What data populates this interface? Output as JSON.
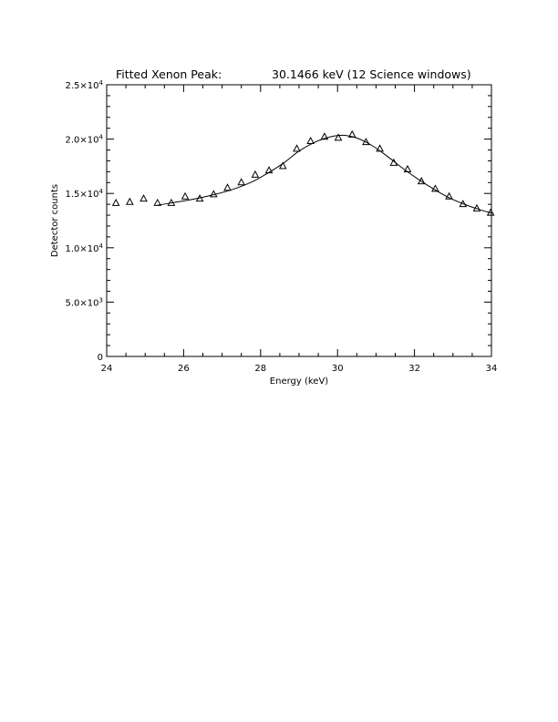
{
  "chart_data": {
    "type": "scatter",
    "title": "Fitted Xenon Peak:",
    "title_value": "30.1466 keV (12 Science windows)",
    "xlabel": "Energy (keV)",
    "ylabel": "Detector counts",
    "xlim": [
      24,
      34
    ],
    "ylim": [
      0,
      25000
    ],
    "grid": false,
    "x_ticks": [
      24,
      26,
      28,
      30,
      32,
      34
    ],
    "x_tick_labels": [
      "24",
      "26",
      "28",
      "30",
      "32",
      "34"
    ],
    "y_ticks": [
      0,
      5000,
      10000,
      15000,
      20000,
      25000
    ],
    "y_tick_labels": [
      {
        "mant": "0",
        "exp": ""
      },
      {
        "mant": "5.0×10",
        "exp": "3"
      },
      {
        "mant": "1.0×10",
        "exp": "4"
      },
      {
        "mant": "1.5×10",
        "exp": "4"
      },
      {
        "mant": "2.0×10",
        "exp": "4"
      },
      {
        "mant": "2.5×10",
        "exp": "4"
      }
    ],
    "series": [
      {
        "marker": "triangle",
        "x": [
          24.24,
          24.6,
          24.96,
          25.32,
          25.68,
          26.04,
          26.42,
          26.78,
          27.14,
          27.5,
          27.86,
          28.22,
          28.58,
          28.94,
          29.3,
          29.66,
          30.02,
          30.38,
          30.74,
          31.1,
          31.46,
          31.82,
          32.18,
          32.54,
          32.9,
          33.26,
          33.62,
          33.98
        ],
        "y": [
          14100,
          14200,
          14500,
          14100,
          14100,
          14700,
          14500,
          14900,
          15500,
          16000,
          16700,
          17100,
          17500,
          19100,
          19800,
          20200,
          20100,
          20400,
          19700,
          19100,
          17800,
          17200,
          16100,
          15400,
          14700,
          14000,
          13600,
          13200
        ]
      },
      {
        "style": "line",
        "x": [
          25.3,
          25.8,
          26.3,
          26.8,
          27.3,
          27.8,
          28.2,
          28.6,
          29.0,
          29.4,
          29.8,
          30.15,
          30.5,
          30.9,
          31.3,
          31.7,
          32.1,
          32.5,
          32.9,
          33.3,
          33.7,
          34.0
        ],
        "y": [
          13900,
          14200,
          14500,
          14900,
          15400,
          16100,
          16900,
          17800,
          18900,
          19700,
          20200,
          20350,
          20100,
          19400,
          18400,
          17300,
          16300,
          15400,
          14600,
          14000,
          13500,
          13200
        ]
      }
    ]
  }
}
